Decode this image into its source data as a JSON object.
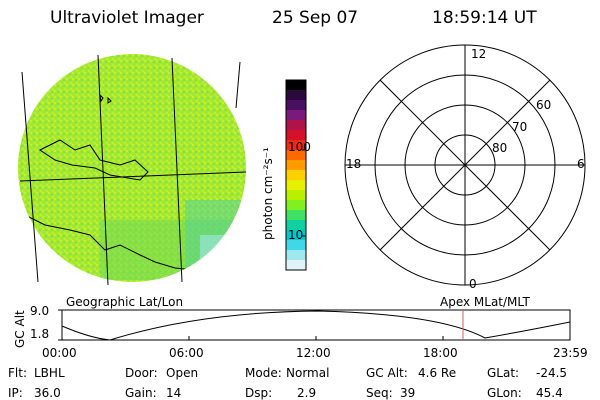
{
  "header": {
    "title": "Ultraviolet Imager",
    "date": "25 Sep 07",
    "time": "18:59:14 UT"
  },
  "colorbar": {
    "unit_label": "photon cm⁻²s⁻¹",
    "tick_100": "100",
    "tick_10": "10",
    "colors": [
      "#000000",
      "#2a0a3a",
      "#4a1060",
      "#7a1a7a",
      "#b0124a",
      "#d4102a",
      "#ee2a10",
      "#ff6a00",
      "#ff9a00",
      "#ffd000",
      "#e8f000",
      "#b8f000",
      "#80f020",
      "#40e060",
      "#10d0a0",
      "#00c8d0",
      "#40d8e8",
      "#a0e8f0",
      "#e0f4f8"
    ]
  },
  "panels": {
    "left_caption": "Geographic Lat/Lon",
    "right_caption": "Apex MLat/MLT"
  },
  "polar": {
    "mlt_12": "12",
    "mlt_18": "18",
    "mlt_6": "6",
    "mlt_0": "0",
    "lat_60": "60",
    "lat_70": "70",
    "lat_80": "80"
  },
  "orbit": {
    "axis_label": "GC Alt",
    "alt_high": "9.0",
    "alt_low": "1.8",
    "times": [
      "00:00",
      "06:00",
      "12:00",
      "18:00",
      "23:59"
    ],
    "marker_color": "#d06060"
  },
  "status": {
    "flt_label": "Flt:",
    "flt_value": "LBHL",
    "door_label": "Door:",
    "door_value": "Open",
    "mode_label": "Mode:",
    "mode_value": "Normal",
    "gcalt_label": "GC Alt:",
    "gcalt_value": "4.6 Re",
    "glat_label": "GLat:",
    "glat_value": "-24.5",
    "ip_label": "IP:",
    "ip_value": "36.0",
    "gain_label": "Gain:",
    "gain_value": "14",
    "dsp_label": "Dsp:",
    "dsp_value": "2.9",
    "seq_label": "Seq:",
    "seq_value": "39",
    "glon_label": "GLon:",
    "glon_value": "45.4"
  }
}
